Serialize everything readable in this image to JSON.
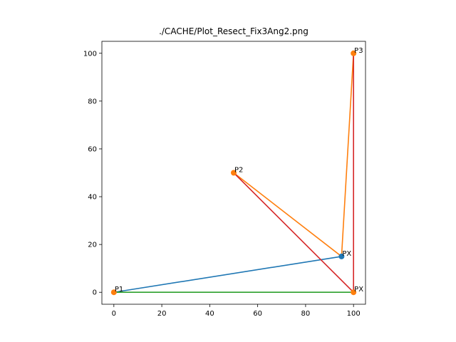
{
  "chart_data": {
    "type": "scatter",
    "title": "./CACHE/Plot_Resect_Fix3Ang2.png",
    "xlabel": "",
    "ylabel": "",
    "xlim": [
      -5,
      105
    ],
    "ylim": [
      -5,
      105
    ],
    "x_ticks": [
      0,
      20,
      40,
      60,
      80,
      100
    ],
    "y_ticks": [
      0,
      20,
      40,
      60,
      80,
      100
    ],
    "grid": false,
    "series": [
      {
        "color": "#1f77b4",
        "points": [
          [
            0,
            0
          ],
          [
            95,
            15
          ]
        ]
      },
      {
        "color": "#ff7f0e",
        "points": [
          [
            50,
            50
          ],
          [
            95,
            15
          ],
          [
            100,
            100
          ]
        ]
      },
      {
        "color": "#2ca02c",
        "points": [
          [
            0,
            0
          ],
          [
            100,
            0
          ]
        ]
      },
      {
        "color": "#d62728",
        "points": [
          [
            50,
            50
          ],
          [
            100,
            0
          ],
          [
            100,
            100
          ]
        ]
      }
    ],
    "markers": [
      {
        "x": 95,
        "y": 15,
        "color": "#1f77b4"
      },
      {
        "x": 0,
        "y": 0,
        "color": "#ff7f0e"
      },
      {
        "x": 50,
        "y": 50,
        "color": "#ff7f0e"
      },
      {
        "x": 100,
        "y": 100,
        "color": "#ff7f0e"
      },
      {
        "x": 100,
        "y": 0,
        "color": "#ff7f0e"
      }
    ],
    "annotations": [
      {
        "text": "P1",
        "x": 0,
        "y": 0
      },
      {
        "text": "P2",
        "x": 50,
        "y": 50
      },
      {
        "text": "P3",
        "x": 100,
        "y": 100
      },
      {
        "text": "PX",
        "x": 95,
        "y": 15
      },
      {
        "text": "PX",
        "x": 100,
        "y": 0
      }
    ]
  }
}
